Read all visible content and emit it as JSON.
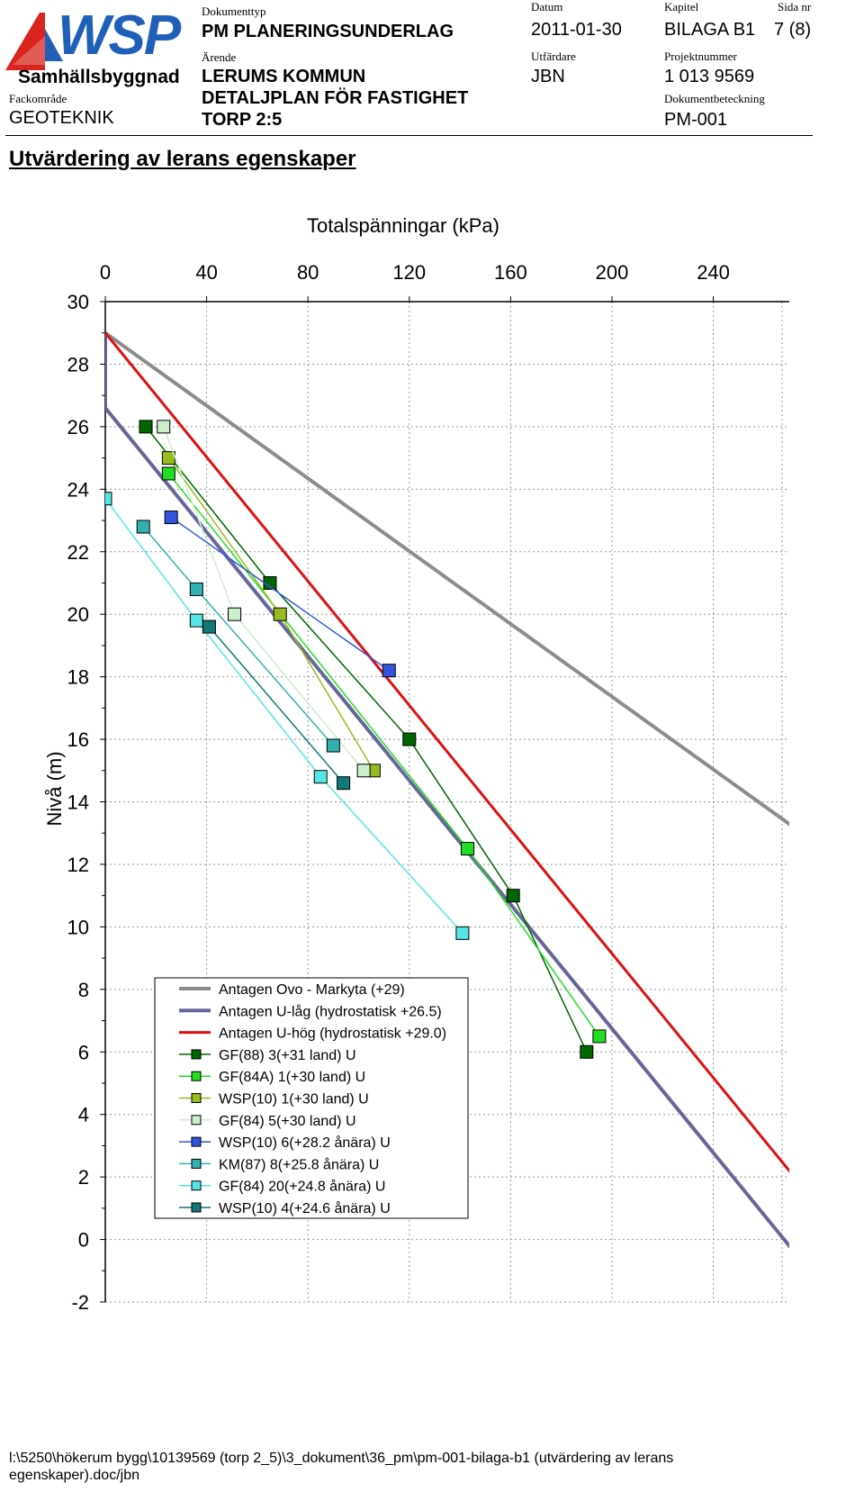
{
  "header": {
    "company": "WSP",
    "division": "Samhällsbyggnad",
    "field_label": "Fackområde",
    "field_value": "GEOTEKNIK",
    "doctype_label": "Dokumenttyp",
    "doctype_value": "PM PLANERINGSUNDERLAG",
    "case_label": "Ärende",
    "case_line1": "LERUMS KOMMUN",
    "case_line2": "DETALJPLAN FÖR FASTIGHET",
    "case_line3": "TORP 2:5",
    "date_label": "Datum",
    "date_value": "2011-01-30",
    "issuer_label": "Utfärdare",
    "issuer_value": "JBN",
    "chapter_label": "Kapitel",
    "chapter_value": "BILAGA B1",
    "page_label": "Sida nr",
    "page_value": "7 (8)",
    "project_label": "Projektnummer",
    "project_value": "1 013 9569",
    "docid_label": "Dokumentbeteckning",
    "docid_value": "PM-001"
  },
  "section_title": "Utvärdering av lerans egenskaper",
  "footer": {
    "path_line1": "l:\\5250\\hökerum bygg\\10139569 (torp 2_5)\\3_dokument\\36_pm\\pm-001-bilaga-b1 (utvärdering av lerans",
    "path_line2": "egenskaper).doc/jbn"
  },
  "chart_data": {
    "type": "line",
    "title": "Totalspänningar (kPa)",
    "xlabel": "Totalspänningar (kPa)",
    "ylabel": "Nivå (m)",
    "xlim": [
      0,
      270
    ],
    "ylim": [
      -2,
      30
    ],
    "xticks": [
      0,
      40,
      80,
      120,
      160,
      200,
      240
    ],
    "yticks": [
      30,
      28,
      26,
      24,
      22,
      20,
      18,
      16,
      14,
      12,
      10,
      8,
      6,
      4,
      2,
      0,
      -2
    ],
    "x_axis_position": "top",
    "grid": true,
    "legend_position": "lower-center",
    "series": [
      {
        "name": "Antagen Ovo - Markyta (+29)",
        "color": "#8c8c8c",
        "marker": "none",
        "width": 4,
        "points": [
          [
            0,
            29
          ],
          [
            275,
            13
          ]
        ]
      },
      {
        "name": "Antagen U-låg (hydrostatisk +26.5)",
        "color": "#66669a",
        "marker": "none",
        "width": 4,
        "points": [
          [
            0,
            29
          ],
          [
            0,
            26.6
          ],
          [
            275,
            -0.7
          ]
        ]
      },
      {
        "name": "Antagen U-hög (hydrostatisk +29.0)",
        "color": "#e01010",
        "marker": "none",
        "width": 3,
        "points": [
          [
            0,
            29
          ],
          [
            275,
            1.7
          ]
        ]
      },
      {
        "name": "GF(88) 3(+31 land) U",
        "color": "#006600",
        "marker": "square",
        "points": [
          [
            16,
            26
          ],
          [
            65,
            21
          ],
          [
            120,
            16
          ],
          [
            161,
            11
          ],
          [
            190,
            6
          ]
        ]
      },
      {
        "name": "GF(84A) 1(+30 land) U",
        "color": "#22dd22",
        "marker": "square",
        "points": [
          [
            25,
            24.5
          ],
          [
            143,
            12.5
          ],
          [
            195,
            6.5
          ]
        ]
      },
      {
        "name": "WSP(10) 1(+30 land) U",
        "color": "#99bb22",
        "marker": "square",
        "points": [
          [
            25,
            25
          ],
          [
            69,
            20
          ],
          [
            106,
            15
          ]
        ]
      },
      {
        "name": "GF(84) 5(+30 land) U",
        "color": "#cceecc",
        "marker": "square",
        "points": [
          [
            23,
            26
          ],
          [
            51,
            20
          ],
          [
            102,
            15
          ]
        ]
      },
      {
        "name": "WSP(10) 6(+28.2 ånära) U",
        "color": "#3355dd",
        "marker": "square",
        "points": [
          [
            26,
            23.1
          ],
          [
            112,
            18.2
          ]
        ]
      },
      {
        "name": "KM(87) 8(+25.8 ånära) U",
        "color": "#33b0b0",
        "marker": "square",
        "points": [
          [
            15,
            22.8
          ],
          [
            36,
            20.8
          ],
          [
            90,
            15.8
          ]
        ]
      },
      {
        "name": "GF(84) 20(+24.8 ånära) U",
        "color": "#55e5e5",
        "marker": "square",
        "points": [
          [
            0,
            23.7
          ],
          [
            36,
            19.8
          ],
          [
            85,
            14.8
          ],
          [
            141,
            9.8
          ]
        ]
      },
      {
        "name": "WSP(10) 4(+24.6 ånära) U",
        "color": "#117777",
        "marker": "square",
        "points": [
          [
            41,
            19.6
          ],
          [
            94,
            14.6
          ]
        ]
      }
    ]
  }
}
